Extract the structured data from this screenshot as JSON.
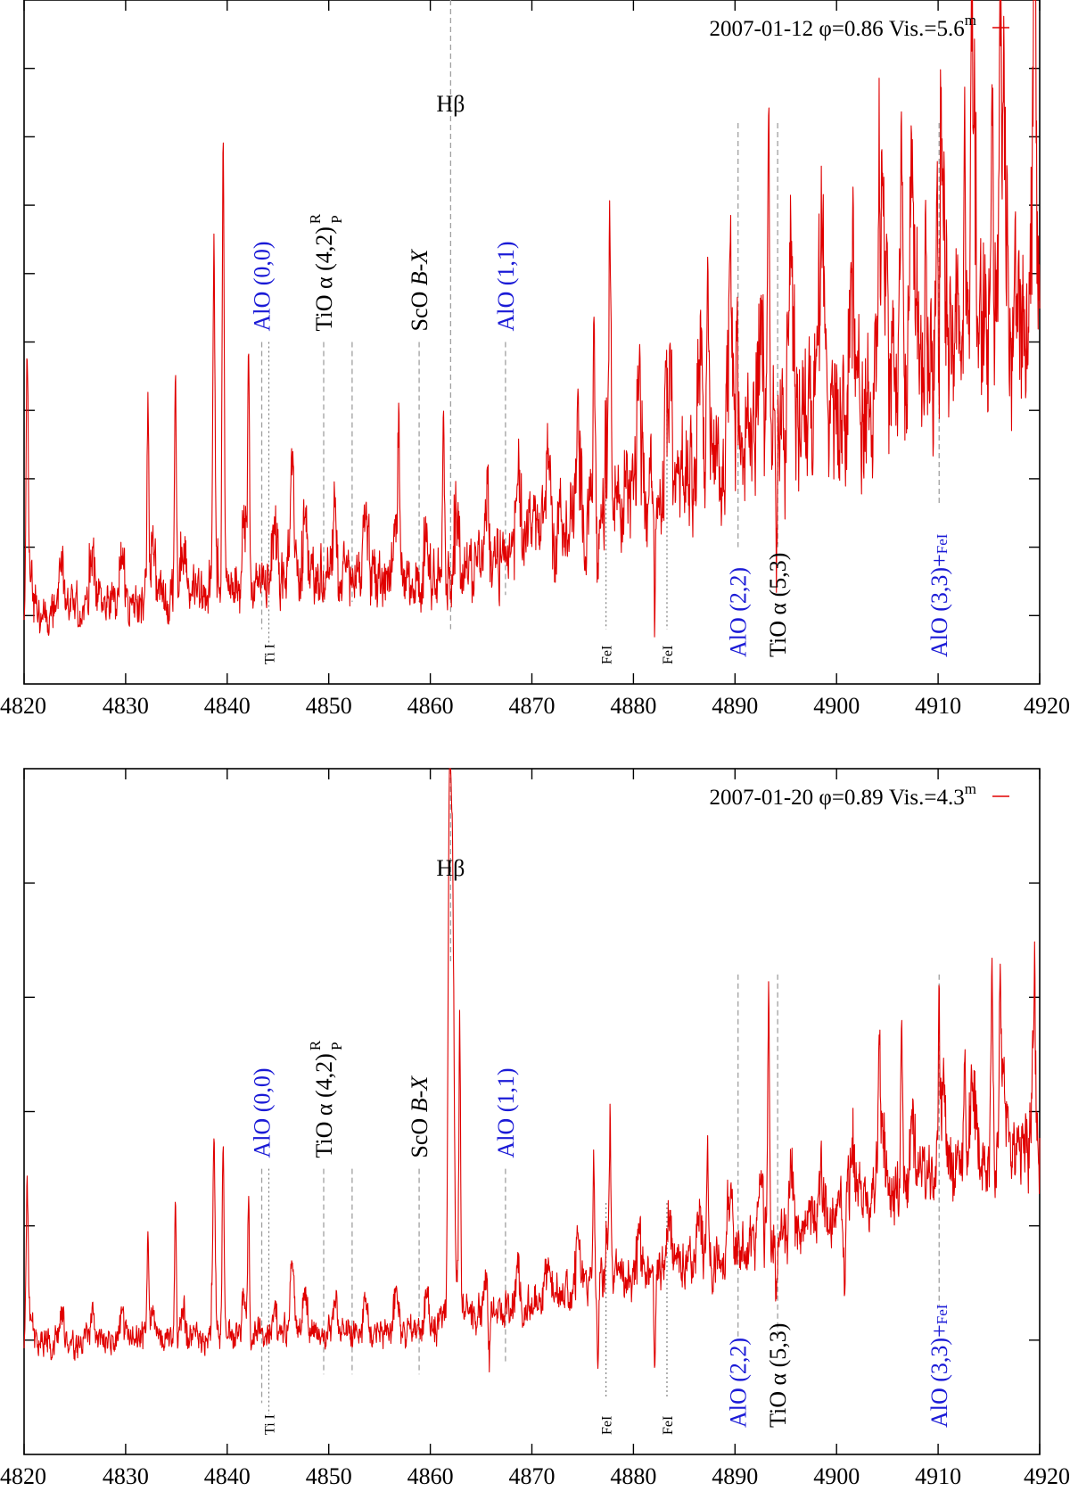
{
  "colors": {
    "spectrum": "#e00000",
    "alo_label": "#1a1ad6",
    "other_label": "#000000",
    "marker": "#a0a0a0"
  },
  "chart_data": [
    {
      "type": "line",
      "panel": "top",
      "legend": {
        "text": "2007-01-12 φ=0.86 Vis.=5.6",
        "superscript": "m",
        "position": "top-right"
      },
      "xlim": [
        4820,
        4920
      ],
      "x_ticks": [
        "4820",
        "4830",
        "4840",
        "4850",
        "4860",
        "4870",
        "4880",
        "4890",
        "4900",
        "4910",
        "4920"
      ],
      "y_tick_count": 10,
      "ylim": [
        0,
        10
      ],
      "y_label": "",
      "series": [
        {
          "name": "spectrum",
          "baseline_anchors": [
            [
              4820,
              1.0
            ],
            [
              4850,
              1.5
            ],
            [
              4860,
              1.4
            ],
            [
              4870,
              2.0
            ],
            [
              4880,
              2.7
            ],
            [
              4890,
              3.3
            ],
            [
              4900,
              4.0
            ],
            [
              4910,
              4.6
            ],
            [
              4920,
              5.2
            ]
          ],
          "lines": [
            {
              "x": 4820.3,
              "a": 3.7,
              "w": 0.15
            },
            {
              "x": 4832.2,
              "a": 2.8,
              "w": 0.12
            },
            {
              "x": 4834.9,
              "a": 3.2,
              "w": 0.12
            },
            {
              "x": 4838.7,
              "a": 4.1,
              "w": 0.14
            },
            {
              "x": 4839.6,
              "a": 6.6,
              "w": 0.14
            },
            {
              "x": 4842.1,
              "a": 3.4,
              "w": 0.12
            },
            {
              "x": 4846.4,
              "a": 1.6,
              "w": 0.3
            },
            {
              "x": 4856.9,
              "a": 1.8,
              "w": 0.12
            },
            {
              "x": 4861.3,
              "a": 2.4,
              "w": 0.12
            },
            {
              "x": 4876.1,
              "a": 2.6,
              "w": 0.12
            },
            {
              "x": 4876.5,
              "a": -1.2,
              "w": 0.12
            },
            {
              "x": 4877.7,
              "a": 3.1,
              "w": 0.12
            },
            {
              "x": 4882.1,
              "a": -1.6,
              "w": 0.12
            },
            {
              "x": 4883.2,
              "a": 1.9,
              "w": 0.12
            },
            {
              "x": 4887.3,
              "a": 2.5,
              "w": 0.12
            },
            {
              "x": 4890.2,
              "a": 1.4,
              "w": 0.12
            },
            {
              "x": 4893.3,
              "a": 5.2,
              "w": 0.12
            },
            {
              "x": 4894.1,
              "a": -1.3,
              "w": 0.15
            },
            {
              "x": 4904.2,
              "a": 3.3,
              "w": 0.12
            },
            {
              "x": 4906.4,
              "a": 4.1,
              "w": 0.12
            },
            {
              "x": 4908.8,
              "a": 2.6,
              "w": 0.12
            },
            {
              "x": 4909.9,
              "a": 2.1,
              "w": 0.12
            },
            {
              "x": 4912.6,
              "a": 3.7,
              "w": 0.12
            },
            {
              "x": 4913.3,
              "a": 3.6,
              "w": 0.12
            },
            {
              "x": 4915.3,
              "a": 4.3,
              "w": 0.15
            },
            {
              "x": 4916.1,
              "a": 3.9,
              "w": 0.12
            },
            {
              "x": 4919.5,
              "a": 2.6,
              "w": 0.12
            }
          ],
          "noise": {
            "amplitude": 0.75,
            "seed": 11
          }
        }
      ],
      "annotations": [
        {
          "text": "Hβ",
          "x": 4862,
          "kind": "top",
          "color": "black",
          "marker_from": 10.0,
          "marker_to": 0.8,
          "style": "dashed"
        },
        {
          "text": "AlO (0,0)",
          "x": 4843.4,
          "kind": "vertical-up",
          "color": "blue",
          "marker_from": 5.0,
          "marker_to": 0.8,
          "style": "dashed"
        },
        {
          "text": "TiO α (4,2)",
          "sub_r": "R",
          "sub_p": "P",
          "x": 4849.5,
          "kind": "vertical-up",
          "color": "black",
          "marker_from": 5.0,
          "marker_to": 1.2,
          "style": "dashed"
        },
        {
          "text": "",
          "x": 4852.3,
          "kind": "none",
          "color": "black",
          "marker_from": 5.0,
          "marker_to": 1.2,
          "style": "dashed"
        },
        {
          "text": "ScO B-X",
          "x": 4858.9,
          "kind": "vertical-up",
          "color": "black",
          "marker_from": 5.0,
          "marker_to": 1.2,
          "style": "dashed"
        },
        {
          "text": "AlO (1,1)",
          "x": 4867.4,
          "kind": "vertical-up",
          "color": "blue",
          "marker_from": 5.0,
          "marker_to": 1.3,
          "style": "dashed"
        },
        {
          "text": "Ti I",
          "x": 4844.1,
          "kind": "bottom-small",
          "color": "black",
          "marker_from": 5.0,
          "marker_to": 0.5,
          "style": "dotted"
        },
        {
          "text": "FeI",
          "x": 4877.3,
          "kind": "bottom-small",
          "color": "black",
          "marker_from": 4.0,
          "marker_to": 0.8,
          "style": "dotted"
        },
        {
          "text": "FeI",
          "x": 4883.3,
          "kind": "bottom-small",
          "color": "black",
          "marker_from": 4.0,
          "marker_to": 0.8,
          "style": "dotted"
        },
        {
          "text": "AlO (2,2)",
          "x": 4890.3,
          "kind": "vertical-down",
          "color": "blue",
          "marker_from": 8.2,
          "marker_to": 2.0,
          "style": "dashed"
        },
        {
          "text": "TiO α (5,3)",
          "x": 4894.2,
          "kind": "vertical-down",
          "color": "black",
          "marker_from": 8.2,
          "marker_to": 2.0,
          "style": "dashed"
        },
        {
          "text": "AlO (3,3)+FeI",
          "x": 4910.1,
          "kind": "vertical-down",
          "color": "blue",
          "marker_from": 8.2,
          "marker_to": 2.6,
          "style": "dashed"
        }
      ]
    },
    {
      "type": "line",
      "panel": "bottom",
      "legend": {
        "text": "2007-01-20 φ=0.89 Vis.=4.3",
        "superscript": "m",
        "position": "top-right"
      },
      "xlim": [
        4820,
        4920
      ],
      "x_ticks": [
        "4820",
        "4830",
        "4840",
        "4850",
        "4860",
        "4870",
        "4880",
        "4890",
        "4900",
        "4910",
        "4920"
      ],
      "y_tick_count": 6,
      "ylim": [
        0,
        6
      ],
      "y_label": "",
      "series": [
        {
          "name": "spectrum",
          "baseline_anchors": [
            [
              4820,
              0.95
            ],
            [
              4850,
              1.05
            ],
            [
              4860,
              1.1
            ],
            [
              4870,
              1.3
            ],
            [
              4880,
              1.55
            ],
            [
              4890,
              1.75
            ],
            [
              4900,
              2.1
            ],
            [
              4910,
              2.45
            ],
            [
              4920,
              2.7
            ]
          ],
          "lines": [
            {
              "x": 4820.3,
              "a": 1.4,
              "w": 0.15
            },
            {
              "x": 4832.2,
              "a": 1.0,
              "w": 0.12
            },
            {
              "x": 4834.9,
              "a": 1.2,
              "w": 0.12
            },
            {
              "x": 4838.7,
              "a": 1.4,
              "w": 0.14
            },
            {
              "x": 4839.6,
              "a": 1.7,
              "w": 0.14
            },
            {
              "x": 4842.1,
              "a": 1.3,
              "w": 0.12
            },
            {
              "x": 4846.4,
              "a": 0.6,
              "w": 0.3
            },
            {
              "x": 4861.9,
              "a": 4.8,
              "w": 0.2
            },
            {
              "x": 4862.2,
              "a": 3.6,
              "w": 0.2
            },
            {
              "x": 4862.9,
              "a": 2.5,
              "w": 0.12
            },
            {
              "x": 4865.8,
              "a": -0.6,
              "w": 0.12
            },
            {
              "x": 4876.1,
              "a": 1.1,
              "w": 0.12
            },
            {
              "x": 4876.5,
              "a": -0.6,
              "w": 0.12
            },
            {
              "x": 4877.7,
              "a": 1.2,
              "w": 0.12
            },
            {
              "x": 4882.1,
              "a": -0.8,
              "w": 0.12
            },
            {
              "x": 4887.3,
              "a": 1.0,
              "w": 0.12
            },
            {
              "x": 4893.3,
              "a": 2.2,
              "w": 0.12
            },
            {
              "x": 4894.1,
              "a": -0.5,
              "w": 0.15
            },
            {
              "x": 4900.8,
              "a": -0.7,
              "w": 0.12
            },
            {
              "x": 4904.2,
              "a": 1.2,
              "w": 0.12
            },
            {
              "x": 4906.4,
              "a": 1.5,
              "w": 0.12
            },
            {
              "x": 4910.1,
              "a": 1.2,
              "w": 0.12
            },
            {
              "x": 4912.6,
              "a": 1.0,
              "w": 0.12
            },
            {
              "x": 4915.3,
              "a": 1.6,
              "w": 0.15
            },
            {
              "x": 4916.1,
              "a": 1.2,
              "w": 0.12
            },
            {
              "x": 4919.5,
              "a": 0.8,
              "w": 0.12
            }
          ],
          "noise": {
            "amplitude": 0.32,
            "seed": 23
          }
        }
      ],
      "annotations": [
        {
          "text": "Hβ",
          "x": 4862,
          "kind": "top",
          "color": "black",
          "marker_from": 6.0,
          "marker_to": 4.3,
          "style": "dashed"
        },
        {
          "text": "AlO (0,0)",
          "x": 4843.4,
          "kind": "vertical-up",
          "color": "blue",
          "marker_from": 2.5,
          "marker_to": 0.45,
          "style": "dashed"
        },
        {
          "text": "TiO α (4,2)",
          "sub_r": "R",
          "sub_p": "P",
          "x": 4849.5,
          "kind": "vertical-up",
          "color": "black",
          "marker_from": 2.5,
          "marker_to": 0.7,
          "style": "dashed"
        },
        {
          "text": "",
          "x": 4852.3,
          "kind": "none",
          "color": "black",
          "marker_from": 2.5,
          "marker_to": 0.7,
          "style": "dashed"
        },
        {
          "text": "ScO B-X",
          "x": 4858.9,
          "kind": "vertical-up",
          "color": "black",
          "marker_from": 2.5,
          "marker_to": 0.7,
          "style": "dashed"
        },
        {
          "text": "AlO (1,1)",
          "x": 4867.4,
          "kind": "vertical-up",
          "color": "blue",
          "marker_from": 2.5,
          "marker_to": 0.8,
          "style": "dashed"
        },
        {
          "text": "Ti I",
          "x": 4844.1,
          "kind": "bottom-small",
          "color": "black",
          "marker_from": 2.5,
          "marker_to": 0.35,
          "style": "dotted"
        },
        {
          "text": "FeI",
          "x": 4877.3,
          "kind": "bottom-small",
          "color": "black",
          "marker_from": 2.2,
          "marker_to": 0.5,
          "style": "dotted"
        },
        {
          "text": "FeI",
          "x": 4883.3,
          "kind": "bottom-small",
          "color": "black",
          "marker_from": 2.2,
          "marker_to": 0.5,
          "style": "dotted"
        },
        {
          "text": "AlO (2,2)",
          "x": 4890.3,
          "kind": "vertical-down",
          "color": "blue",
          "marker_from": 4.2,
          "marker_to": 1.0,
          "style": "dashed"
        },
        {
          "text": "TiO α (5,3)",
          "x": 4894.2,
          "kind": "vertical-down",
          "color": "black",
          "marker_from": 4.2,
          "marker_to": 1.0,
          "style": "dashed"
        },
        {
          "text": "AlO (3,3)+FeI",
          "x": 4910.1,
          "kind": "vertical-down",
          "color": "blue",
          "marker_from": 4.2,
          "marker_to": 1.3,
          "style": "dashed"
        }
      ]
    }
  ]
}
